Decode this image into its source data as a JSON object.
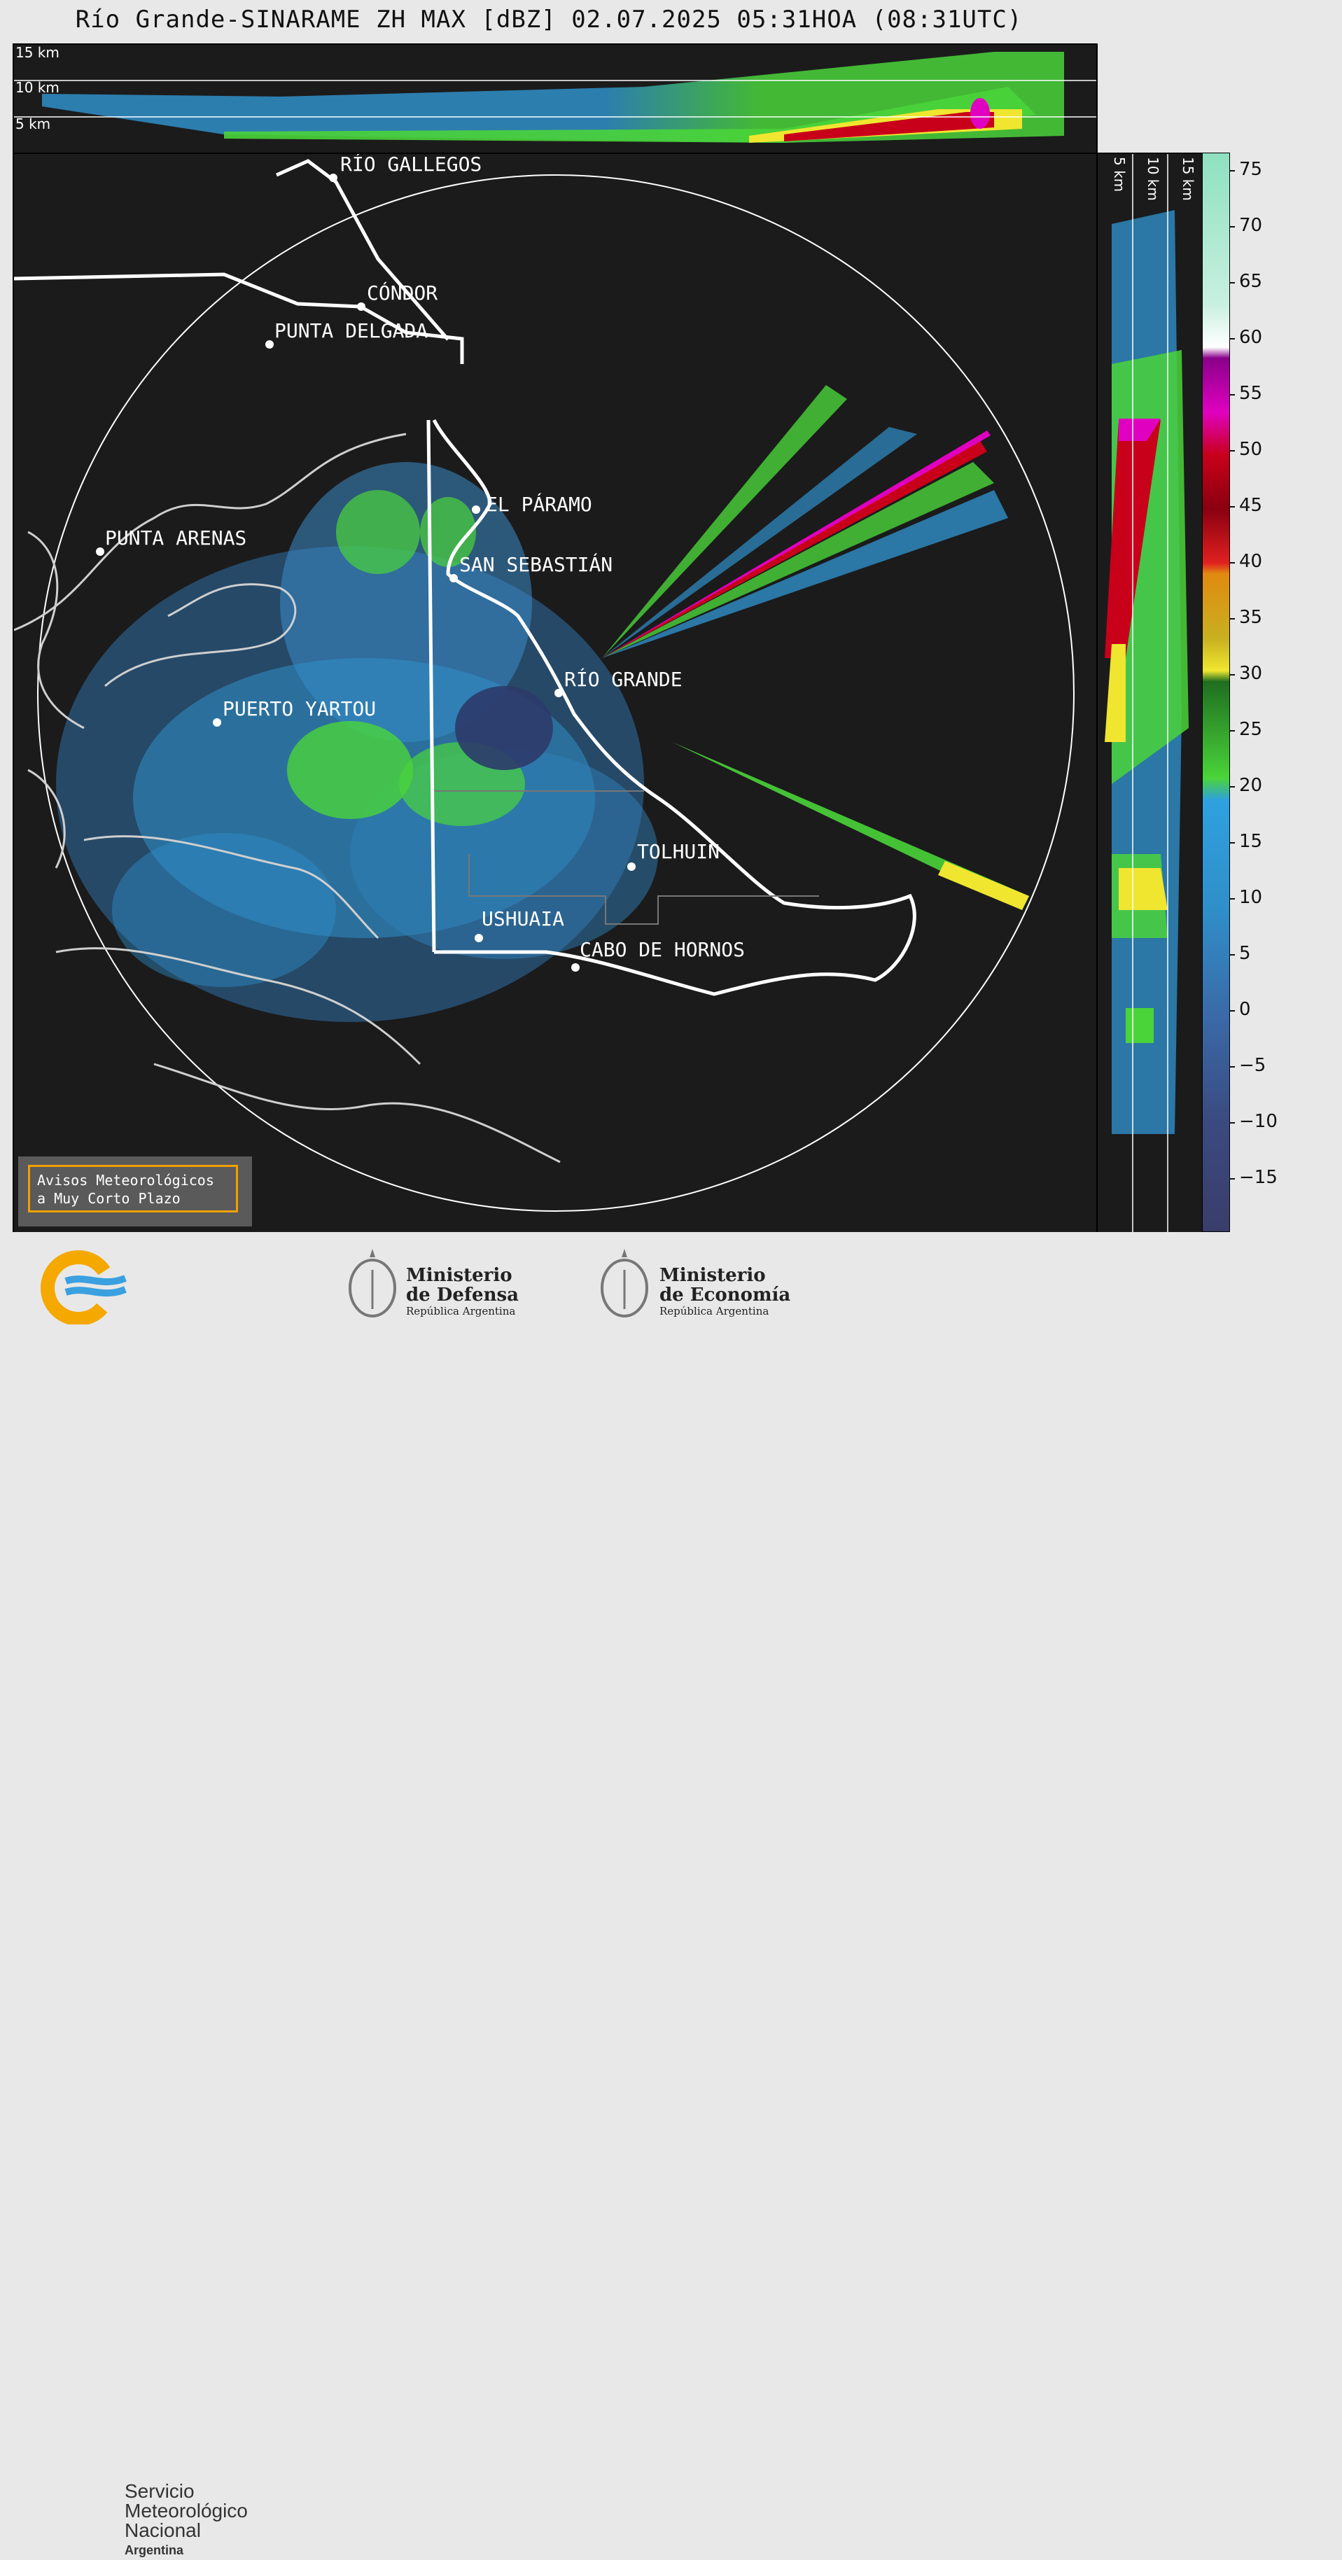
{
  "title": "Río Grande-SINARAME ZH MAX [dBZ] 02.07.2025 05:31HOA (08:31UTC)",
  "cities": [
    {
      "name": "RÍO GALLEGOS"
    },
    {
      "name": "CÓNDOR"
    },
    {
      "name": "PUNTA DELGADA"
    },
    {
      "name": "EL PÁRAMO"
    },
    {
      "name": "PUNTA ARENAS"
    },
    {
      "name": "SAN SEBASTIÁN"
    },
    {
      "name": "RÍO GRANDE"
    },
    {
      "name": "PUERTO YARTOU"
    },
    {
      "name": "TOLHUIN"
    },
    {
      "name": "USHUAIA"
    },
    {
      "name": "CABO DE HORNOS"
    }
  ],
  "height_labels": [
    "15 km",
    "10 km",
    "5 km"
  ],
  "side_height_labels": [
    "5 km",
    "10 km",
    "15 km"
  ],
  "colorbar": {
    "unit": "dBZ",
    "ticks": [
      "75",
      "70",
      "65",
      "60",
      "55",
      "50",
      "45",
      "40",
      "35",
      "30",
      "25",
      "20",
      "15",
      "10",
      "5",
      "0",
      "−5",
      "−10",
      "−15"
    ],
    "range": [
      -20,
      77
    ],
    "colors": {
      "weak": "#3a3d6a",
      "light": "#2f8fc9",
      "moderate": "#4ad43a",
      "strong_green": "#1f6e1f",
      "yellow": "#f0e630",
      "orange": "#e08a10",
      "red": "#c8001a",
      "magenta": "#e000c0",
      "white": "#ffffff",
      "mint": "#8ee0c0"
    }
  },
  "alert_box": {
    "line1": "Avisos Meteorológicos",
    "line2": "a Muy Corto Plazo"
  },
  "footer": {
    "smn": {
      "line1": "Servicio",
      "line2": "Meteorológico",
      "line3": "Nacional",
      "line4": "Argentina"
    },
    "defensa": {
      "line1": "Ministerio",
      "line2": "de Defensa",
      "sub": "República Argentina"
    },
    "economia": {
      "line1": "Ministerio",
      "line2": "de Economía",
      "sub": "República Argentina"
    }
  }
}
